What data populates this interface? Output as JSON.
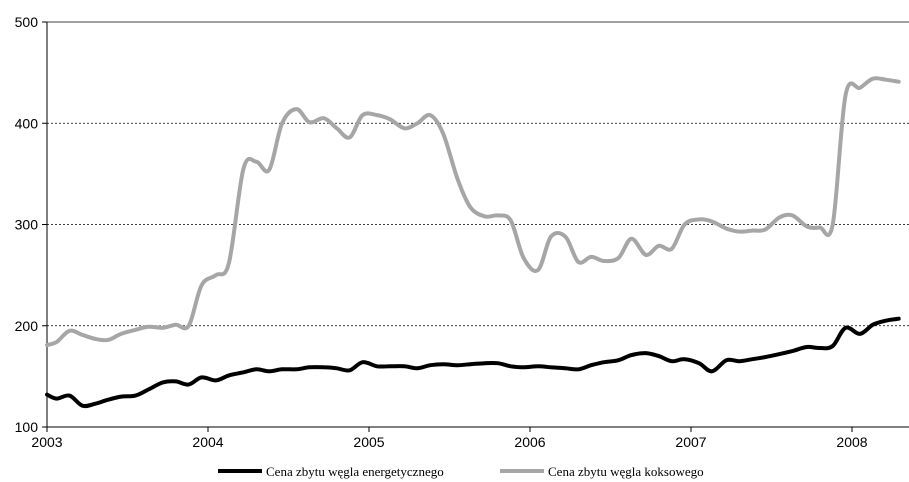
{
  "chart_data": {
    "type": "line",
    "title": "",
    "xlabel": "",
    "ylabel": "",
    "ylim": [
      100,
      500
    ],
    "yticks": [
      100,
      200,
      300,
      400,
      500
    ],
    "xlim": [
      2003,
      2008.29
    ],
    "xticks": [
      "2003",
      "2004",
      "2005",
      "2006",
      "2007",
      "2008"
    ],
    "grid": "horizontal dotted",
    "legend_position": "bottom",
    "series": [
      {
        "name": "Cena zbytu węgla energetycznego",
        "color": "#000000",
        "points": [
          [
            2003.0,
            132
          ],
          [
            2003.06,
            128
          ],
          [
            2003.14,
            131
          ],
          [
            2003.22,
            121
          ],
          [
            2003.3,
            123
          ],
          [
            2003.38,
            127
          ],
          [
            2003.46,
            130
          ],
          [
            2003.55,
            131
          ],
          [
            2003.63,
            137
          ],
          [
            2003.72,
            144
          ],
          [
            2003.8,
            145
          ],
          [
            2003.88,
            142
          ],
          [
            2003.96,
            149
          ],
          [
            2004.05,
            146
          ],
          [
            2004.13,
            151
          ],
          [
            2004.22,
            154
          ],
          [
            2004.3,
            157
          ],
          [
            2004.38,
            155
          ],
          [
            2004.46,
            157
          ],
          [
            2004.55,
            157
          ],
          [
            2004.63,
            159
          ],
          [
            2004.72,
            159
          ],
          [
            2004.8,
            158
          ],
          [
            2004.88,
            156
          ],
          [
            2004.96,
            164
          ],
          [
            2005.05,
            160
          ],
          [
            2005.13,
            160
          ],
          [
            2005.22,
            160
          ],
          [
            2005.3,
            158
          ],
          [
            2005.38,
            161
          ],
          [
            2005.46,
            162
          ],
          [
            2005.55,
            161
          ],
          [
            2005.63,
            162
          ],
          [
            2005.72,
            163
          ],
          [
            2005.8,
            163
          ],
          [
            2005.88,
            160
          ],
          [
            2005.96,
            159
          ],
          [
            2006.05,
            160
          ],
          [
            2006.13,
            159
          ],
          [
            2006.22,
            158
          ],
          [
            2006.3,
            157
          ],
          [
            2006.38,
            161
          ],
          [
            2006.46,
            164
          ],
          [
            2006.55,
            166
          ],
          [
            2006.63,
            171
          ],
          [
            2006.72,
            173
          ],
          [
            2006.8,
            170
          ],
          [
            2006.88,
            165
          ],
          [
            2006.96,
            167
          ],
          [
            2007.05,
            163
          ],
          [
            2007.13,
            155
          ],
          [
            2007.22,
            166
          ],
          [
            2007.3,
            165
          ],
          [
            2007.38,
            167
          ],
          [
            2007.46,
            169
          ],
          [
            2007.55,
            172
          ],
          [
            2007.63,
            175
          ],
          [
            2007.72,
            179
          ],
          [
            2007.8,
            178
          ],
          [
            2007.88,
            180
          ],
          [
            2007.96,
            198
          ],
          [
            2008.05,
            192
          ],
          [
            2008.13,
            201
          ],
          [
            2008.21,
            205
          ],
          [
            2008.29,
            207
          ]
        ]
      },
      {
        "name": "Cena zbytu węgla koksowego",
        "color": "#a6a6a6",
        "points": [
          [
            2003.0,
            181
          ],
          [
            2003.06,
            184
          ],
          [
            2003.14,
            195
          ],
          [
            2003.22,
            191
          ],
          [
            2003.3,
            187
          ],
          [
            2003.38,
            186
          ],
          [
            2003.46,
            192
          ],
          [
            2003.55,
            196
          ],
          [
            2003.63,
            199
          ],
          [
            2003.72,
            198
          ],
          [
            2003.8,
            201
          ],
          [
            2003.88,
            200
          ],
          [
            2003.96,
            240
          ],
          [
            2004.05,
            250
          ],
          [
            2004.13,
            262
          ],
          [
            2004.22,
            355
          ],
          [
            2004.3,
            362
          ],
          [
            2004.38,
            354
          ],
          [
            2004.46,
            400
          ],
          [
            2004.55,
            414
          ],
          [
            2004.63,
            401
          ],
          [
            2004.72,
            405
          ],
          [
            2004.8,
            395
          ],
          [
            2004.88,
            386
          ],
          [
            2004.96,
            408
          ],
          [
            2005.05,
            408
          ],
          [
            2005.13,
            404
          ],
          [
            2005.22,
            395
          ],
          [
            2005.3,
            400
          ],
          [
            2005.38,
            408
          ],
          [
            2005.46,
            390
          ],
          [
            2005.55,
            345
          ],
          [
            2005.63,
            317
          ],
          [
            2005.72,
            308
          ],
          [
            2005.8,
            309
          ],
          [
            2005.88,
            304
          ],
          [
            2005.96,
            267
          ],
          [
            2006.05,
            255
          ],
          [
            2006.13,
            288
          ],
          [
            2006.22,
            288
          ],
          [
            2006.3,
            263
          ],
          [
            2006.38,
            268
          ],
          [
            2006.46,
            264
          ],
          [
            2006.55,
            267
          ],
          [
            2006.63,
            286
          ],
          [
            2006.72,
            270
          ],
          [
            2006.8,
            279
          ],
          [
            2006.88,
            276
          ],
          [
            2006.96,
            300
          ],
          [
            2007.05,
            305
          ],
          [
            2007.13,
            303
          ],
          [
            2007.22,
            296
          ],
          [
            2007.3,
            293
          ],
          [
            2007.38,
            294
          ],
          [
            2007.46,
            295
          ],
          [
            2007.55,
            307
          ],
          [
            2007.63,
            309
          ],
          [
            2007.72,
            298
          ],
          [
            2007.8,
            297
          ],
          [
            2007.88,
            300
          ],
          [
            2007.96,
            428
          ],
          [
            2008.05,
            435
          ],
          [
            2008.13,
            444
          ],
          [
            2008.21,
            443
          ],
          [
            2008.29,
            441
          ]
        ]
      }
    ]
  }
}
